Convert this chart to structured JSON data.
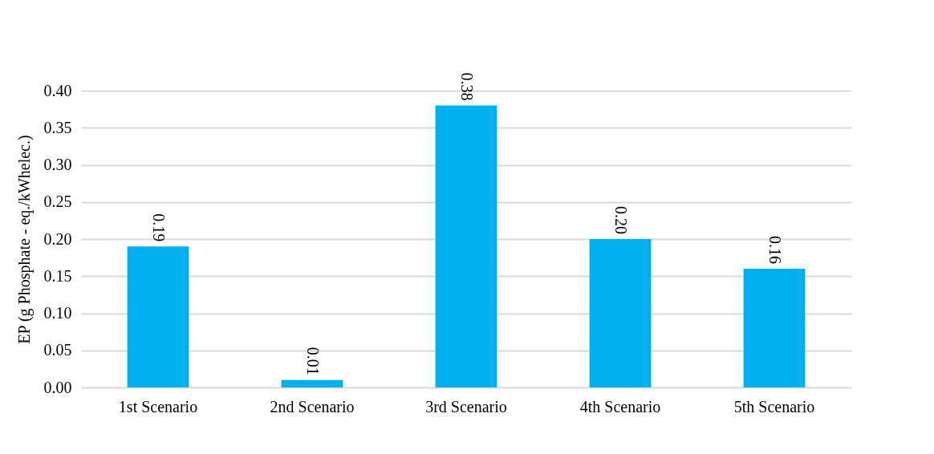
{
  "chart_data": {
    "type": "bar",
    "ylabel": "EP (g Phosphate - eq./kWhelec.)",
    "categories": [
      "1st Scenario",
      "2nd Scenario",
      "3rd Scenario",
      "4th Scenario",
      "5th Scenario"
    ],
    "values": [
      0.19,
      0.01,
      0.38,
      0.2,
      0.16
    ],
    "color": "#00b0f0",
    "value_labels": [
      "0.19",
      "0.01",
      "0.38",
      "0.20",
      "0.16"
    ],
    "grid": "y",
    "ylim": [
      0,
      0.4
    ],
    "yticks": [
      {
        "value": 0,
        "label": "0.00"
      },
      {
        "value": 0.05,
        "label": "0.05"
      },
      {
        "value": 0.1,
        "label": "0.10"
      },
      {
        "value": 0.15,
        "label": "0.15"
      },
      {
        "value": 0.2,
        "label": "0.20"
      },
      {
        "value": 0.25,
        "label": "0.25"
      },
      {
        "value": 0.3,
        "label": "0.30"
      },
      {
        "value": 0.35,
        "label": "0.35"
      },
      {
        "value": 0.4,
        "label": "0.40"
      }
    ]
  }
}
